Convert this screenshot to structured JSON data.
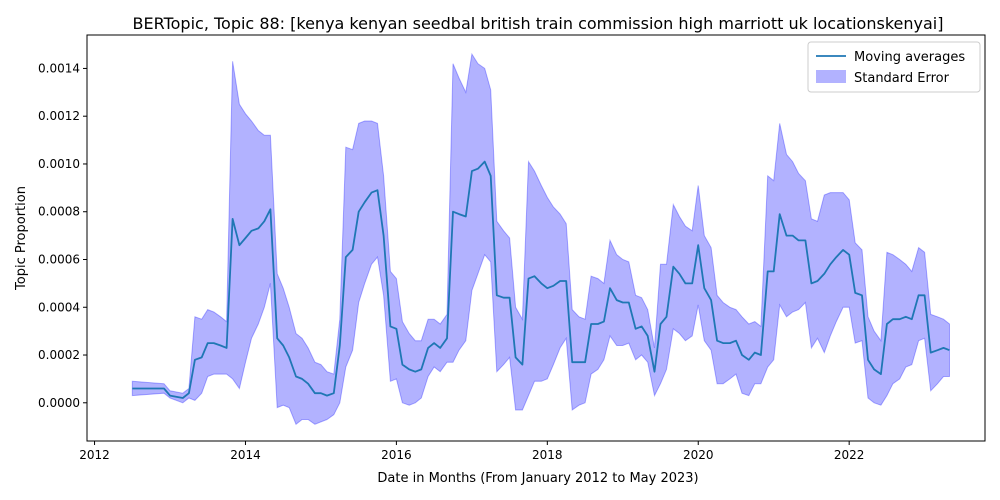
{
  "chart_data": {
    "type": "line",
    "title": "BERTopic, Topic 88: [kenya kenyan seedbal british train commission high marriott uk locationskenyai]",
    "xlabel": "Date in Months (From January 2012 to May 2023)",
    "ylabel": "Topic Proportion",
    "xlim": [
      2011.9,
      2023.8
    ],
    "ylim": [
      -0.00016,
      0.00154
    ],
    "x_ticks": [
      2012,
      2014,
      2016,
      2018,
      2020,
      2022
    ],
    "y_ticks": [
      0.0,
      0.0002,
      0.0004,
      0.0006,
      0.0008,
      0.001,
      0.0012,
      0.0014
    ],
    "y_tick_labels": [
      "0.0000",
      "0.0002",
      "0.0004",
      "0.0006",
      "0.0008",
      "0.0010",
      "0.0012",
      "0.0014"
    ],
    "legend_position": "top-right",
    "grid": false,
    "series": [
      {
        "name": "Moving averages",
        "color": "#1f77b4",
        "x": [
          2012.5,
          2012.92,
          2013.0,
          2013.17,
          2013.25,
          2013.33,
          2013.42,
          2013.5,
          2013.58,
          2013.67,
          2013.75,
          2013.83,
          2013.92,
          2014.0,
          2014.08,
          2014.17,
          2014.25,
          2014.33,
          2014.42,
          2014.5,
          2014.58,
          2014.67,
          2014.75,
          2014.83,
          2014.92,
          2015.0,
          2015.08,
          2015.17,
          2015.25,
          2015.33,
          2015.42,
          2015.5,
          2015.58,
          2015.67,
          2015.75,
          2015.83,
          2015.92,
          2016.0,
          2016.08,
          2016.17,
          2016.25,
          2016.33,
          2016.42,
          2016.5,
          2016.58,
          2016.67,
          2016.75,
          2016.83,
          2016.92,
          2017.0,
          2017.08,
          2017.17,
          2017.25,
          2017.33,
          2017.42,
          2017.5,
          2017.58,
          2017.67,
          2017.75,
          2017.83,
          2017.92,
          2018.0,
          2018.08,
          2018.17,
          2018.25,
          2018.33,
          2018.42,
          2018.5,
          2018.58,
          2018.67,
          2018.75,
          2018.83,
          2018.92,
          2019.0,
          2019.08,
          2019.17,
          2019.25,
          2019.33,
          2019.42,
          2019.5,
          2019.58,
          2019.67,
          2019.75,
          2019.83,
          2019.92,
          2020.0,
          2020.08,
          2020.17,
          2020.25,
          2020.33,
          2020.42,
          2020.5,
          2020.58,
          2020.67,
          2020.75,
          2020.83,
          2020.92,
          2021.0,
          2021.08,
          2021.17,
          2021.25,
          2021.33,
          2021.42,
          2021.5,
          2021.58,
          2021.67,
          2021.75,
          2021.83,
          2021.92,
          2022.0,
          2022.08,
          2022.17,
          2022.25,
          2022.33,
          2022.42,
          2022.5,
          2022.58,
          2022.67,
          2022.75,
          2022.83,
          2022.92,
          2023.0,
          2023.08,
          2023.17,
          2023.25,
          2023.33
        ],
        "y": [
          6e-05,
          6e-05,
          3e-05,
          2e-05,
          4e-05,
          0.00018,
          0.00019,
          0.00025,
          0.00025,
          0.00024,
          0.00023,
          0.00077,
          0.00066,
          0.00069,
          0.00072,
          0.00073,
          0.00076,
          0.00081,
          0.00027,
          0.00024,
          0.00019,
          0.00011,
          0.0001,
          8e-05,
          4e-05,
          4e-05,
          3e-05,
          4e-05,
          0.00024,
          0.00061,
          0.00064,
          0.0008,
          0.00084,
          0.00088,
          0.00089,
          0.0007,
          0.00032,
          0.00031,
          0.00016,
          0.00014,
          0.00013,
          0.00014,
          0.00023,
          0.00025,
          0.00023,
          0.00027,
          0.0008,
          0.00079,
          0.00078,
          0.00097,
          0.00098,
          0.00101,
          0.00095,
          0.00045,
          0.00044,
          0.00044,
          0.00019,
          0.00016,
          0.00052,
          0.00053,
          0.0005,
          0.00048,
          0.00049,
          0.00051,
          0.00051,
          0.00017,
          0.00017,
          0.00017,
          0.00033,
          0.00033,
          0.00034,
          0.00048,
          0.00043,
          0.00042,
          0.00042,
          0.00031,
          0.00032,
          0.00028,
          0.00013,
          0.00033,
          0.00036,
          0.00057,
          0.00054,
          0.0005,
          0.0005,
          0.00066,
          0.00048,
          0.00043,
          0.00026,
          0.00025,
          0.00025,
          0.00026,
          0.0002,
          0.00018,
          0.00021,
          0.0002,
          0.00055,
          0.00055,
          0.00079,
          0.0007,
          0.0007,
          0.00068,
          0.00068,
          0.0005,
          0.00051,
          0.00054,
          0.00058,
          0.00061,
          0.00064,
          0.00062,
          0.00046,
          0.00045,
          0.00018,
          0.00014,
          0.00012,
          0.00033,
          0.00035,
          0.00035,
          0.00036,
          0.00035,
          0.00045,
          0.00045,
          0.00021,
          0.00022,
          0.00023,
          0.00022
        ]
      },
      {
        "name": "Standard Error",
        "color": "#0000ff",
        "alpha": 0.3,
        "x": [
          2012.5,
          2012.92,
          2013.0,
          2013.17,
          2013.25,
          2013.33,
          2013.42,
          2013.5,
          2013.58,
          2013.67,
          2013.75,
          2013.83,
          2013.92,
          2014.0,
          2014.08,
          2014.17,
          2014.25,
          2014.33,
          2014.42,
          2014.5,
          2014.58,
          2014.67,
          2014.75,
          2014.83,
          2014.92,
          2015.0,
          2015.08,
          2015.17,
          2015.25,
          2015.33,
          2015.42,
          2015.5,
          2015.58,
          2015.67,
          2015.75,
          2015.83,
          2015.92,
          2016.0,
          2016.08,
          2016.17,
          2016.25,
          2016.33,
          2016.42,
          2016.5,
          2016.58,
          2016.67,
          2016.75,
          2016.83,
          2016.92,
          2017.0,
          2017.08,
          2017.17,
          2017.25,
          2017.33,
          2017.42,
          2017.5,
          2017.58,
          2017.67,
          2017.75,
          2017.83,
          2017.92,
          2018.0,
          2018.08,
          2018.17,
          2018.25,
          2018.33,
          2018.42,
          2018.5,
          2018.58,
          2018.67,
          2018.75,
          2018.83,
          2018.92,
          2019.0,
          2019.08,
          2019.17,
          2019.25,
          2019.33,
          2019.42,
          2019.5,
          2019.58,
          2019.67,
          2019.75,
          2019.83,
          2019.92,
          2020.0,
          2020.08,
          2020.17,
          2020.25,
          2020.33,
          2020.42,
          2020.5,
          2020.58,
          2020.67,
          2020.75,
          2020.83,
          2020.92,
          2021.0,
          2021.08,
          2021.17,
          2021.25,
          2021.33,
          2021.42,
          2021.5,
          2021.58,
          2021.67,
          2021.75,
          2021.83,
          2021.92,
          2022.0,
          2022.08,
          2022.17,
          2022.25,
          2022.33,
          2022.42,
          2022.5,
          2022.58,
          2022.67,
          2022.75,
          2022.83,
          2022.92,
          2023.0,
          2023.08,
          2023.17,
          2023.25,
          2023.33
        ],
        "upper": [
          9e-05,
          8e-05,
          5e-05,
          4e-05,
          6e-05,
          0.00036,
          0.00035,
          0.00039,
          0.00038,
          0.00036,
          0.00034,
          0.00143,
          0.00125,
          0.00121,
          0.00118,
          0.00114,
          0.00112,
          0.00112,
          0.00054,
          0.00048,
          0.0004,
          0.00029,
          0.00027,
          0.00023,
          0.00017,
          0.00016,
          0.00013,
          0.00012,
          0.00035,
          0.00107,
          0.00106,
          0.00117,
          0.00118,
          0.00118,
          0.00117,
          0.00095,
          0.00055,
          0.00052,
          0.00034,
          0.00029,
          0.00026,
          0.00026,
          0.00035,
          0.00035,
          0.00033,
          0.00037,
          0.00142,
          0.00136,
          0.0013,
          0.00146,
          0.00142,
          0.0014,
          0.00131,
          0.00076,
          0.00072,
          0.00069,
          0.0004,
          0.00035,
          0.00101,
          0.00097,
          0.00091,
          0.00086,
          0.00082,
          0.00079,
          0.00075,
          0.00039,
          0.00036,
          0.00035,
          0.00053,
          0.00052,
          0.0005,
          0.00068,
          0.00062,
          0.0006,
          0.00059,
          0.00045,
          0.00044,
          0.00039,
          0.00023,
          0.00058,
          0.00058,
          0.00083,
          0.00078,
          0.00074,
          0.00072,
          0.00091,
          0.0007,
          0.00065,
          0.00045,
          0.00042,
          0.0004,
          0.00039,
          0.00036,
          0.00033,
          0.00034,
          0.00032,
          0.00095,
          0.00093,
          0.00117,
          0.00104,
          0.00101,
          0.00096,
          0.00093,
          0.00077,
          0.00076,
          0.00087,
          0.00088,
          0.00088,
          0.00088,
          0.00085,
          0.00067,
          0.00064,
          0.00036,
          0.0003,
          0.00026,
          0.00063,
          0.00062,
          0.0006,
          0.00058,
          0.00055,
          0.00065,
          0.00063,
          0.00037,
          0.00036,
          0.00035,
          0.00033
        ],
        "lower": [
          3e-05,
          4e-05,
          2e-05,
          0.0,
          2e-05,
          1e-05,
          4e-05,
          0.00011,
          0.00012,
          0.00012,
          0.00012,
          0.0001,
          6e-05,
          0.00017,
          0.00027,
          0.00033,
          0.0004,
          0.0005,
          -2e-05,
          -1e-05,
          -2e-05,
          -9e-05,
          -7e-05,
          -7e-05,
          -9e-05,
          -8e-05,
          -7e-05,
          -5e-05,
          0.0,
          0.00015,
          0.00022,
          0.00042,
          0.0005,
          0.00058,
          0.00061,
          0.00045,
          9e-05,
          0.0001,
          0.0,
          -1e-05,
          0.0,
          2e-05,
          0.00011,
          0.00015,
          0.00013,
          0.00017,
          0.00017,
          0.00022,
          0.00026,
          0.00047,
          0.00054,
          0.00062,
          0.00059,
          0.00013,
          0.00016,
          0.00019,
          -3e-05,
          -3e-05,
          3e-05,
          9e-05,
          9e-05,
          0.0001,
          0.00016,
          0.00023,
          0.00027,
          -3e-05,
          -1e-05,
          0.0,
          0.00012,
          0.00014,
          0.00018,
          0.00028,
          0.00024,
          0.00024,
          0.00025,
          0.00018,
          0.0002,
          0.00017,
          3e-05,
          8e-05,
          0.00014,
          0.00031,
          0.00029,
          0.00026,
          0.00028,
          0.00041,
          0.00026,
          0.00022,
          8e-05,
          8e-05,
          0.0001,
          0.00012,
          4e-05,
          3e-05,
          8e-05,
          8e-05,
          0.00015,
          0.00018,
          0.00041,
          0.00036,
          0.00038,
          0.00039,
          0.00042,
          0.00023,
          0.00027,
          0.00021,
          0.00028,
          0.00034,
          0.0004,
          0.0004,
          0.00025,
          0.00026,
          2e-05,
          0.0,
          -1e-05,
          3e-05,
          8e-05,
          0.0001,
          0.00015,
          0.00016,
          0.00026,
          0.00027,
          5e-05,
          8e-05,
          0.00011,
          0.00011
        ]
      }
    ]
  }
}
